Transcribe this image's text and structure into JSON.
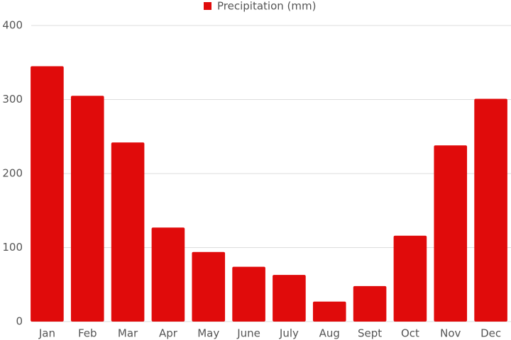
{
  "chart_data": {
    "type": "bar",
    "legend": "Precipitation (mm)",
    "categories": [
      "Jan",
      "Feb",
      "Mar",
      "Apr",
      "May",
      "June",
      "July",
      "Aug",
      "Sept",
      "Oct",
      "Nov",
      "Dec"
    ],
    "values": [
      345,
      305,
      242,
      127,
      94,
      74,
      63,
      27,
      48,
      116,
      238,
      301
    ],
    "color": "#e00b0b",
    "ylim": [
      0,
      400
    ],
    "yticks": [
      0,
      100,
      200,
      300,
      400
    ],
    "grid": true
  }
}
